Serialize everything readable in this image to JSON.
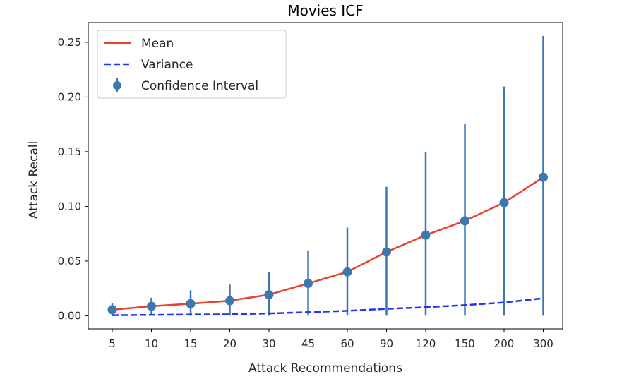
{
  "chart_data": {
    "type": "line",
    "title": "Movies ICF",
    "xlabel": "Attack Recommendations",
    "ylabel": "Attack Recall",
    "categories": [
      "5",
      "10",
      "15",
      "20",
      "30",
      "45",
      "60",
      "90",
      "120",
      "150",
      "200",
      "300"
    ],
    "ylim": [
      -0.012,
      0.268
    ],
    "yticks": [
      "0.00",
      "0.05",
      "0.10",
      "0.15",
      "0.20",
      "0.25"
    ],
    "grid": false,
    "legend_position": "upper left",
    "series": [
      {
        "name": "Mean",
        "style": "solid",
        "color": "#e8412f",
        "values": [
          0.0055,
          0.0087,
          0.011,
          0.0137,
          0.0193,
          0.0296,
          0.0401,
          0.0583,
          0.0737,
          0.0868,
          0.1034,
          0.1266
        ]
      },
      {
        "name": "Variance",
        "style": "dashed",
        "color": "#2433f2",
        "values": [
          0.0005,
          0.0008,
          0.0011,
          0.0013,
          0.0021,
          0.0033,
          0.0045,
          0.0063,
          0.0078,
          0.0097,
          0.0121,
          0.016
        ]
      },
      {
        "name": "Confidence Interval",
        "style": "errorbar",
        "color": "#3b78b0",
        "values": [
          0.0055,
          0.0087,
          0.011,
          0.0137,
          0.0193,
          0.0296,
          0.0401,
          0.0583,
          0.0737,
          0.0868,
          0.1034,
          0.1266
        ],
        "lower": [
          0.0,
          0.001,
          0.0,
          0.0,
          0.0,
          0.0,
          0.0,
          0.0,
          0.0,
          0.0,
          0.0,
          0.0
        ],
        "upper": [
          0.0115,
          0.0165,
          0.0232,
          0.0285,
          0.04,
          0.0598,
          0.0806,
          0.1178,
          0.1496,
          0.1758,
          0.2095,
          0.2558
        ]
      }
    ],
    "colors": {
      "axis": "#000000",
      "text": "#262626",
      "legend_border": "#cccccc"
    }
  }
}
